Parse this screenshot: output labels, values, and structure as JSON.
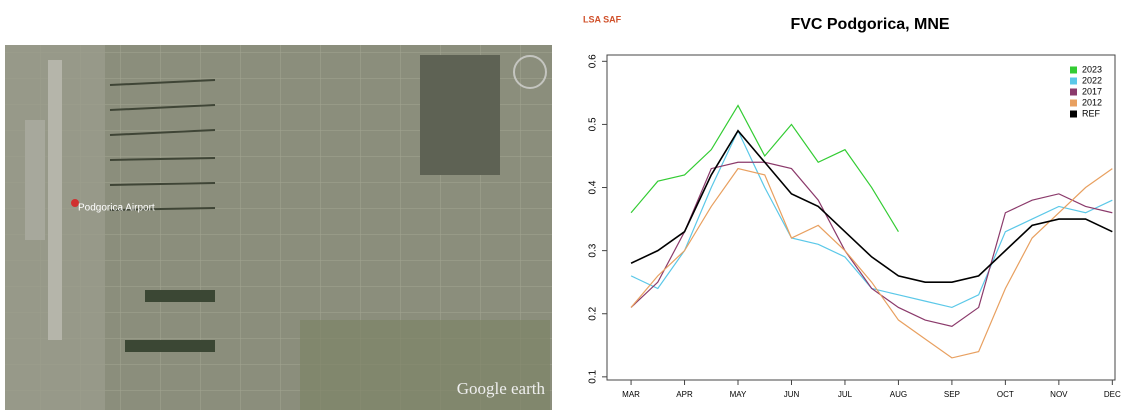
{
  "map": {
    "place_label": "Podgorica Airport",
    "watermark": "Google earth"
  },
  "chart_data": {
    "type": "line",
    "title": "FVC Podgorica, MNE",
    "logo": "LSA SAF",
    "x": [
      3,
      3.5,
      4,
      4.5,
      5,
      5.5,
      6,
      6.5,
      7,
      7.5,
      8,
      8.5,
      9,
      9.5,
      10,
      10.5,
      11,
      11.5,
      12
    ],
    "xlim": [
      2.55,
      12.05
    ],
    "xticks": [
      {
        "value": 3,
        "label": "MAR"
      },
      {
        "value": 4,
        "label": "APR"
      },
      {
        "value": 5,
        "label": "MAY"
      },
      {
        "value": 6,
        "label": "JUN"
      },
      {
        "value": 7,
        "label": "JUL"
      },
      {
        "value": 8,
        "label": "AUG"
      },
      {
        "value": 9,
        "label": "SEP"
      },
      {
        "value": 10,
        "label": "OCT"
      },
      {
        "value": 11,
        "label": "NOV"
      },
      {
        "value": 12,
        "label": "DEC"
      }
    ],
    "ylim": [
      0.095,
      0.61
    ],
    "yticks": [
      0.1,
      0.2,
      0.3,
      0.4,
      0.5,
      0.6
    ],
    "legend": "top right",
    "series": [
      {
        "name": "2023",
        "color": "#33cc33",
        "values": [
          0.36,
          0.41,
          0.42,
          0.46,
          0.53,
          0.45,
          0.5,
          0.44,
          0.46,
          0.4,
          0.33,
          null,
          null,
          null,
          null,
          null,
          null,
          null,
          null
        ]
      },
      {
        "name": "2022",
        "color": "#5bc8e8",
        "values": [
          0.26,
          0.24,
          0.3,
          0.4,
          0.49,
          0.4,
          0.32,
          0.31,
          0.29,
          0.24,
          0.23,
          0.22,
          0.21,
          0.23,
          0.33,
          0.35,
          0.37,
          0.36,
          0.38
        ]
      },
      {
        "name": "2017",
        "color": "#8b3a6b",
        "values": [
          0.21,
          0.25,
          0.33,
          0.43,
          0.44,
          0.44,
          0.43,
          0.38,
          0.3,
          0.24,
          0.21,
          0.19,
          0.18,
          0.21,
          0.36,
          0.38,
          0.39,
          0.37,
          0.36
        ]
      },
      {
        "name": "2012",
        "color": "#e8a060",
        "values": [
          0.21,
          0.26,
          0.3,
          0.37,
          0.43,
          0.42,
          0.32,
          0.34,
          0.3,
          0.25,
          0.19,
          0.16,
          0.13,
          0.14,
          0.24,
          0.32,
          0.36,
          0.4,
          0.43
        ]
      },
      {
        "name": "REF",
        "color": "#000000",
        "values": [
          0.28,
          0.3,
          0.33,
          0.42,
          0.49,
          0.44,
          0.39,
          0.37,
          0.33,
          0.29,
          0.26,
          0.25,
          0.25,
          0.26,
          0.3,
          0.34,
          0.35,
          0.35,
          0.33
        ]
      }
    ]
  }
}
